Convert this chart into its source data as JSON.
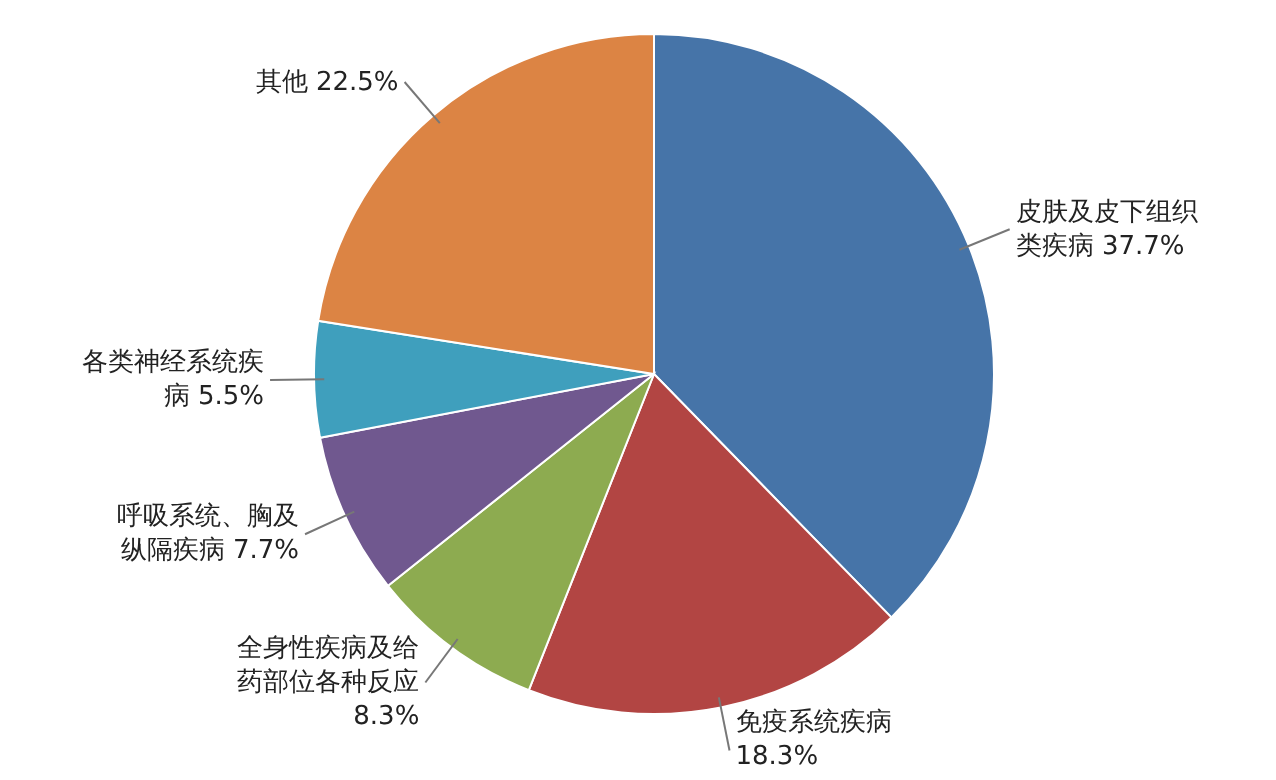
{
  "chart_data": {
    "type": "pie",
    "categories": [
      "皮肤及皮下组织类疾病",
      "免疫系统疾病",
      "全身性疾病及给药部位各种反应",
      "呼吸系统、胸及纵隔疾病",
      "各类神经系统疾病",
      "其他"
    ],
    "values": [
      37.7,
      18.3,
      8.3,
      7.7,
      5.5,
      22.5
    ],
    "value_labels": [
      "37.7%",
      "18.3%",
      "8.3%",
      "7.7%",
      "5.5%",
      "22.5%"
    ],
    "colors": [
      "#4674a8",
      "#b24543",
      "#8dab50",
      "#70588f",
      "#3f9fbd",
      "#dc8444"
    ],
    "data_labels": true
  }
}
